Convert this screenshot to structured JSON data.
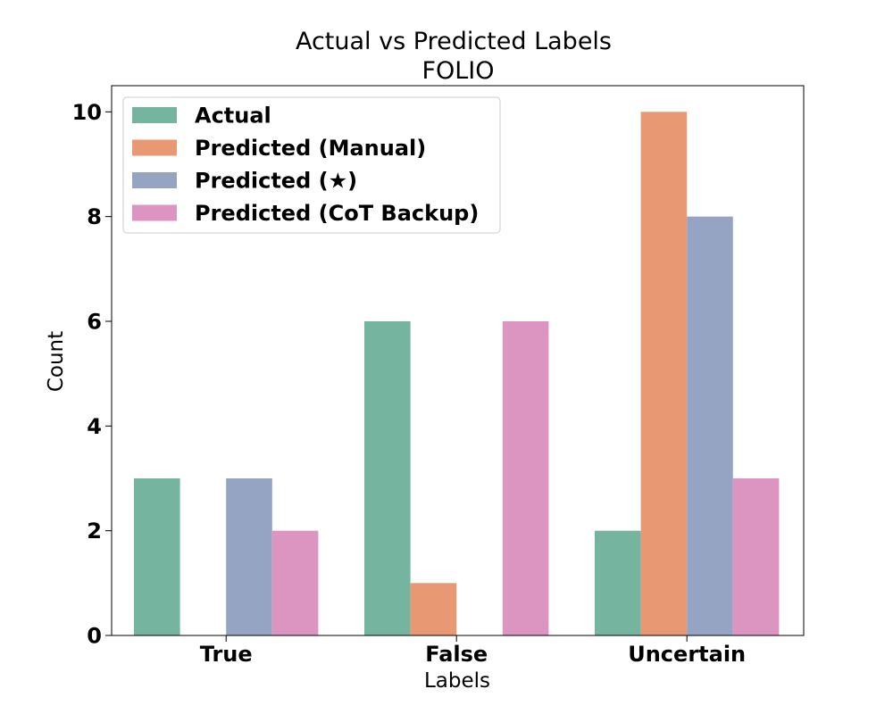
{
  "chart_data": {
    "type": "bar",
    "title": "Actual vs Predicted Labels",
    "subtitle": "FOLIO",
    "xlabel": "Labels",
    "ylabel": "Count",
    "categories": [
      "True",
      "False",
      "Uncertain"
    ],
    "ylim": [
      0,
      10.5
    ],
    "yticks": [
      0,
      2,
      4,
      6,
      8,
      10
    ],
    "grid": false,
    "legend_position": "top-left",
    "series": [
      {
        "name": "Actual",
        "color": "#75b5a0",
        "values": [
          3,
          6,
          2
        ]
      },
      {
        "name": "Predicted (Manual)",
        "color": "#e99874",
        "values": [
          0,
          1,
          10
        ]
      },
      {
        "name": "Predicted (★)",
        "color": "#96a4c3",
        "values": [
          3,
          0,
          8
        ]
      },
      {
        "name": "Predicted (CoT Backup)",
        "color": "#dc95c0",
        "values": [
          2,
          6,
          3
        ]
      }
    ]
  }
}
